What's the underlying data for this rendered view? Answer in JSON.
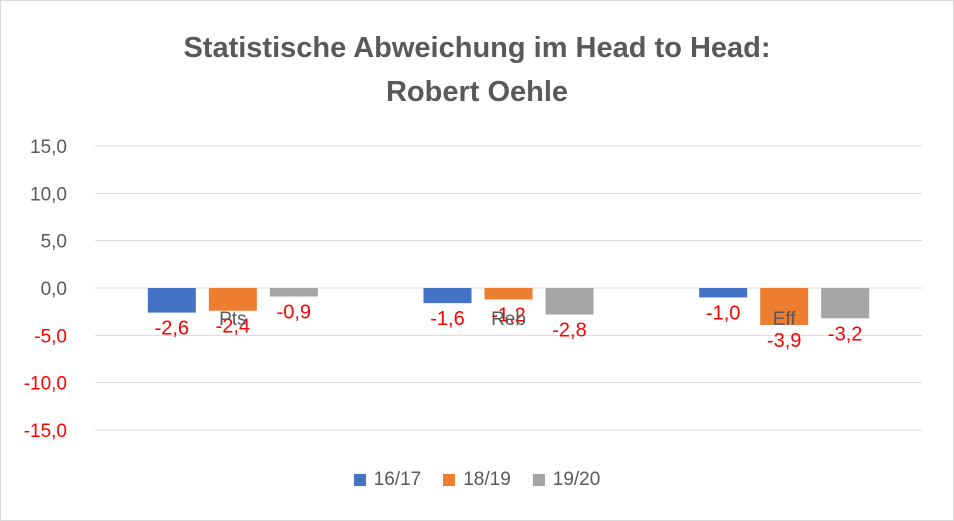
{
  "chart_data": {
    "type": "bar",
    "title_line1": "Statistische Abweichung im Head to Head:",
    "title_line2": "Robert Oehle",
    "categories": [
      "Pts",
      "Reb",
      "Eff"
    ],
    "series": [
      {
        "name": "16/17",
        "color": "#4472c4",
        "values": [
          -2.6,
          -1.6,
          -1.0
        ],
        "labels": [
          "-2,6",
          "-1,6",
          "-1,0"
        ]
      },
      {
        "name": "18/19",
        "color": "#ed7d31",
        "values": [
          -2.4,
          -1.2,
          -3.9
        ],
        "labels": [
          "-2,4",
          "-1,2",
          "-3,9"
        ]
      },
      {
        "name": "19/20",
        "color": "#a5a5a5",
        "values": [
          -0.9,
          -2.8,
          -3.2
        ],
        "labels": [
          "-0,9",
          "-2,8",
          "-3,2"
        ]
      }
    ],
    "yticks": [
      15,
      10,
      5,
      0,
      -5,
      -10,
      -15
    ],
    "ytick_labels": [
      "15,0",
      "10,0",
      "5,0",
      "0,0",
      "-5,0",
      "-10,0",
      "-15,0"
    ],
    "ylim": [
      -15,
      15
    ],
    "grid": true,
    "legend_position": "bottom",
    "negative_label_color": "#ff0000",
    "tick_label_color_positive": "#595959",
    "tick_label_color_negative": "#ff0000"
  }
}
